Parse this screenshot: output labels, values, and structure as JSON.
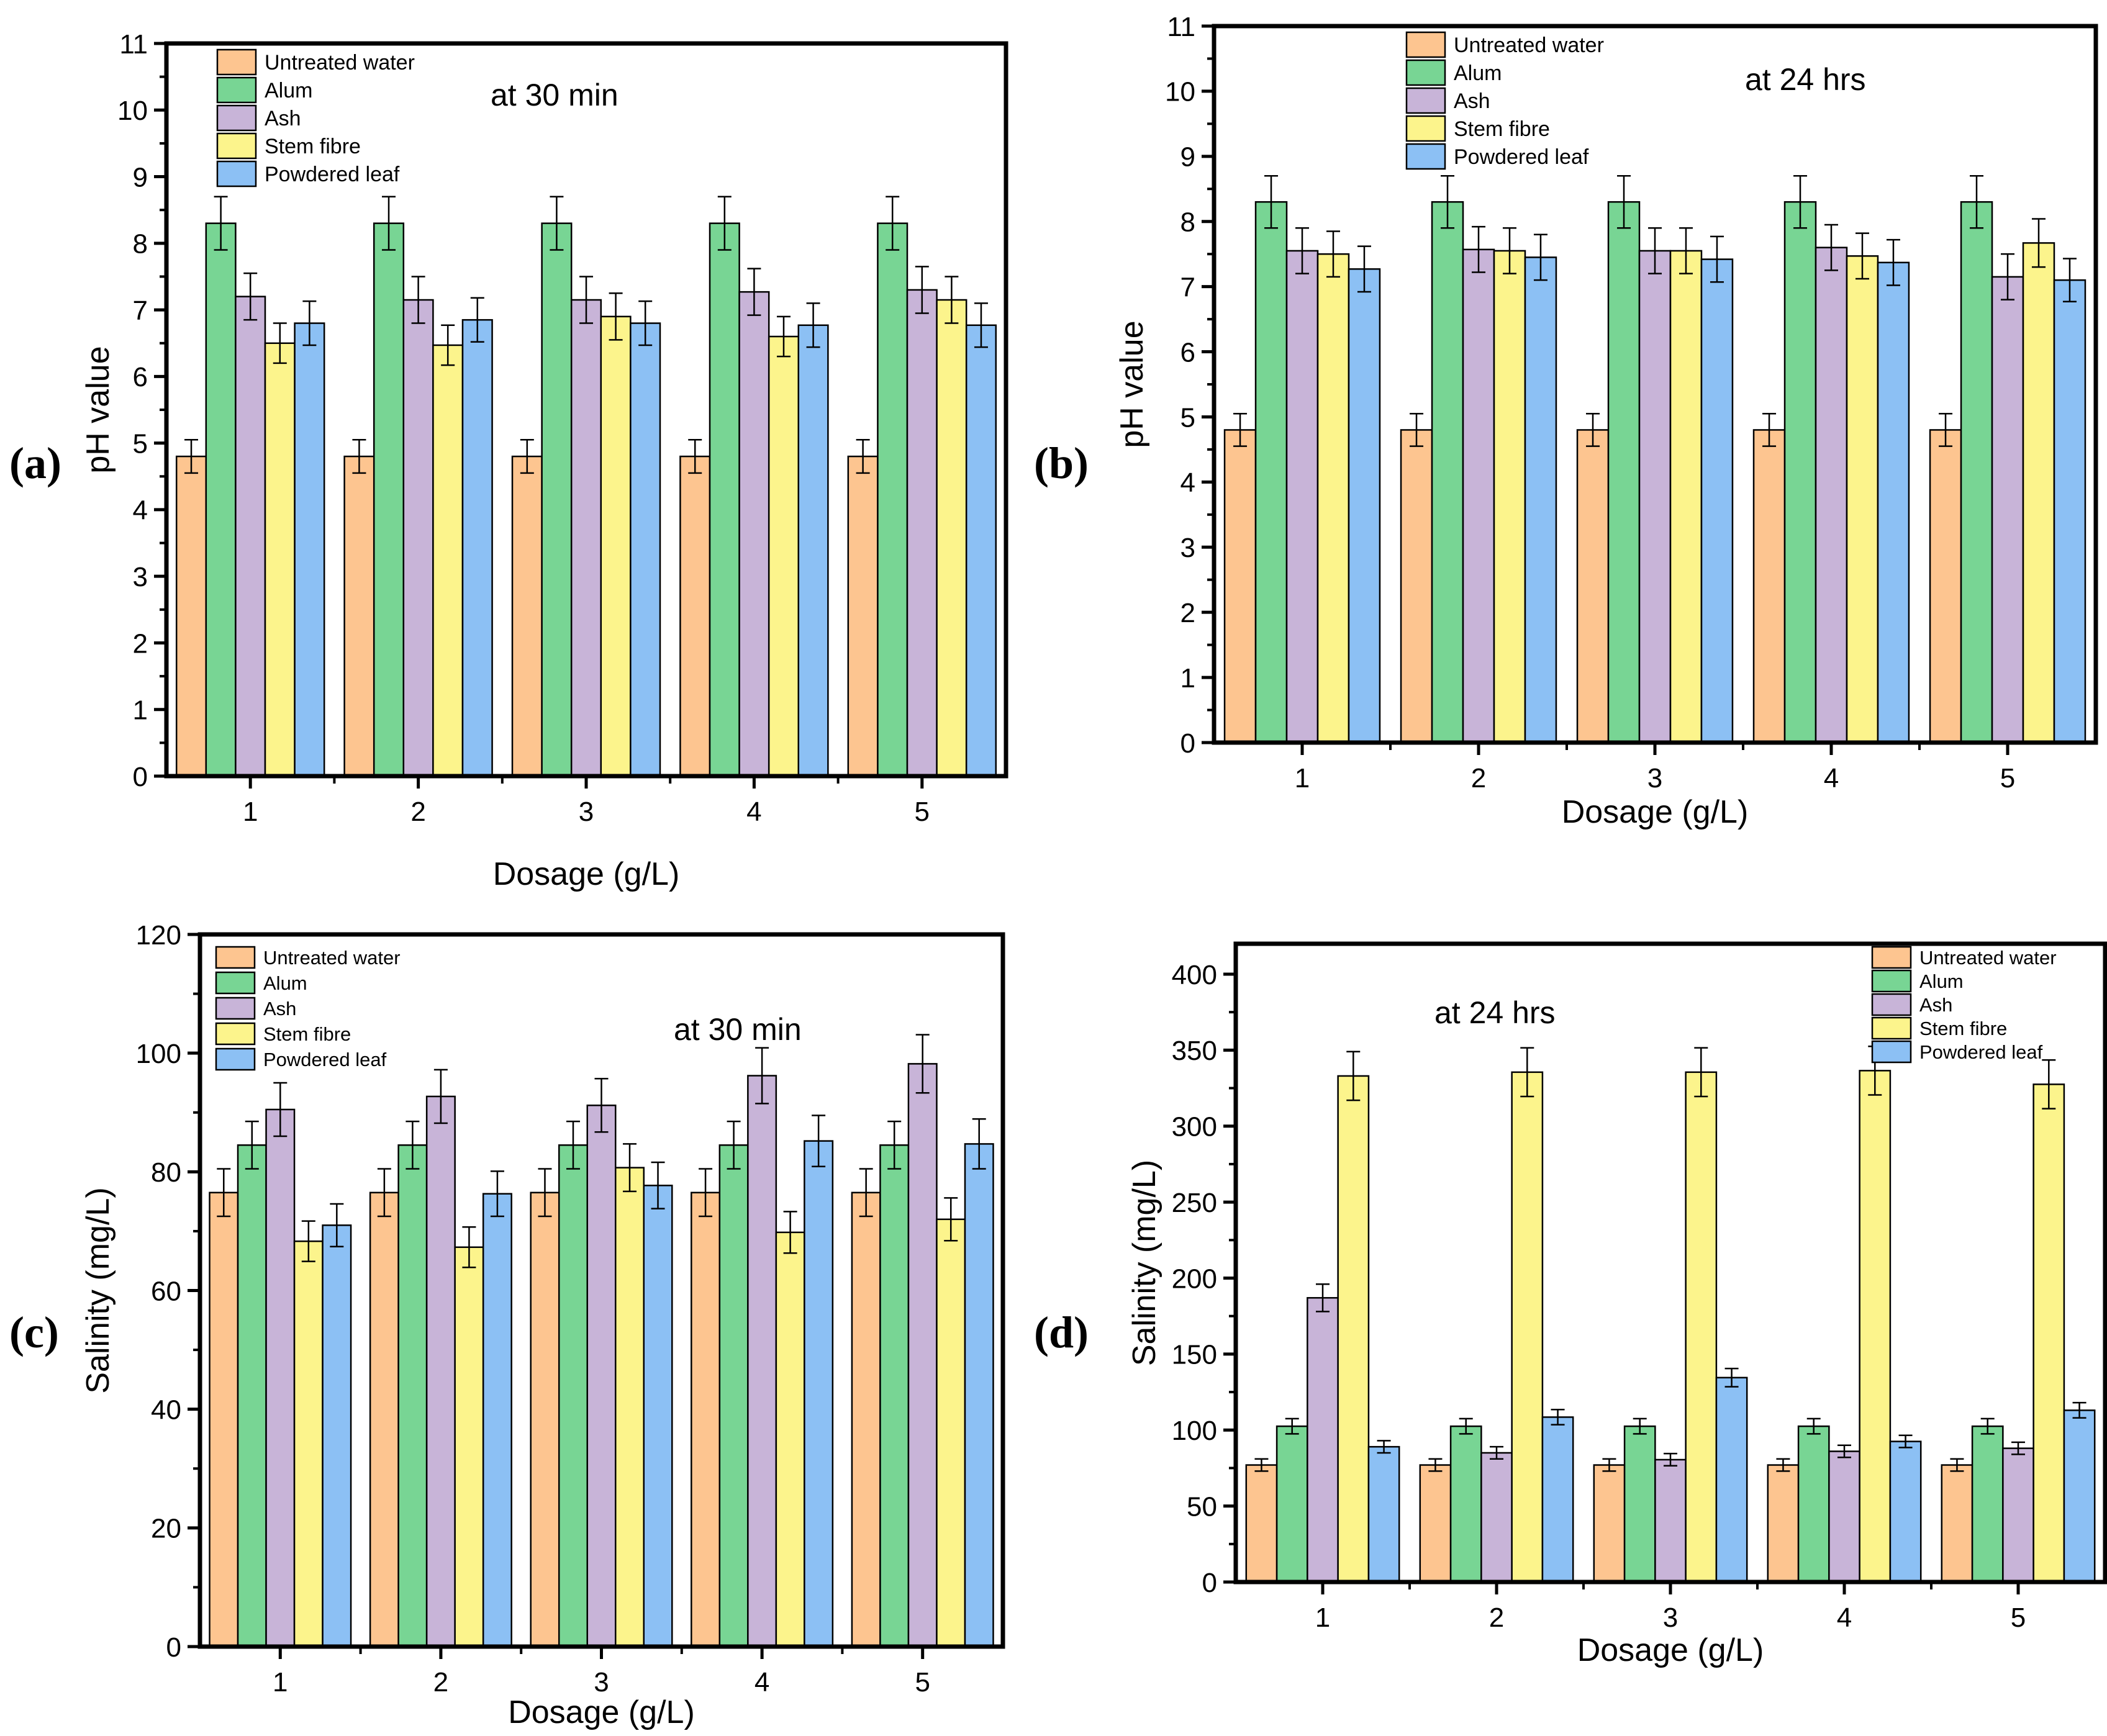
{
  "colors": {
    "series": [
      "#FDC590",
      "#78D594",
      "#C8B4D8",
      "#FCF48C",
      "#8CC0F4"
    ],
    "axis": "#000000",
    "error_bar": "#000000"
  },
  "chart_data": [
    {
      "type": "bar",
      "panel_label": "(a)",
      "annotation": "at 30 min",
      "xlabel": "Dosage (g/L)",
      "ylabel": "pH value",
      "ylim": [
        0,
        11
      ],
      "yticks": [
        "0",
        "1",
        "2",
        "3",
        "4",
        "5",
        "6",
        "7",
        "8",
        "9",
        "10",
        "11"
      ],
      "categories": [
        "1",
        "2",
        "3",
        "4",
        "5"
      ],
      "legend_position": "top-left",
      "series": [
        {
          "name": "Untreated water",
          "values": [
            4.8,
            4.8,
            4.8,
            4.8,
            4.8
          ],
          "errors": [
            0.25,
            0.25,
            0.25,
            0.25,
            0.25
          ]
        },
        {
          "name": "Alum",
          "values": [
            8.3,
            8.3,
            8.3,
            8.3,
            8.3
          ],
          "errors": [
            0.4,
            0.4,
            0.4,
            0.4,
            0.4
          ]
        },
        {
          "name": "Ash",
          "values": [
            7.2,
            7.15,
            7.15,
            7.27,
            7.3
          ],
          "errors": [
            0.35,
            0.35,
            0.35,
            0.35,
            0.35
          ]
        },
        {
          "name": "Stem fibre",
          "values": [
            6.5,
            6.47,
            6.9,
            6.6,
            7.15
          ],
          "errors": [
            0.3,
            0.3,
            0.35,
            0.3,
            0.35
          ]
        },
        {
          "name": "Powdered leaf",
          "values": [
            6.8,
            6.85,
            6.8,
            6.77,
            6.77
          ],
          "errors": [
            0.33,
            0.33,
            0.33,
            0.33,
            0.33
          ]
        }
      ]
    },
    {
      "type": "bar",
      "panel_label": "(b)",
      "annotation": "at 24 hrs",
      "xlabel": "Dosage (g/L)",
      "ylabel": "pH value",
      "ylim": [
        0,
        11
      ],
      "yticks": [
        "0",
        "1",
        "2",
        "3",
        "4",
        "5",
        "6",
        "7",
        "8",
        "9",
        "10",
        "11"
      ],
      "categories": [
        "1",
        "2",
        "3",
        "4",
        "5"
      ],
      "legend_position": "top-left",
      "series": [
        {
          "name": "Untreated water",
          "values": [
            4.8,
            4.8,
            4.8,
            4.8,
            4.8
          ],
          "errors": [
            0.25,
            0.25,
            0.25,
            0.25,
            0.25
          ]
        },
        {
          "name": "Alum",
          "values": [
            8.3,
            8.3,
            8.3,
            8.3,
            8.3
          ],
          "errors": [
            0.4,
            0.4,
            0.4,
            0.4,
            0.4
          ]
        },
        {
          "name": "Ash",
          "values": [
            7.55,
            7.57,
            7.55,
            7.6,
            7.15
          ],
          "errors": [
            0.35,
            0.35,
            0.35,
            0.35,
            0.35
          ]
        },
        {
          "name": "Stem fibre",
          "values": [
            7.5,
            7.55,
            7.55,
            7.47,
            7.67
          ],
          "errors": [
            0.35,
            0.35,
            0.35,
            0.35,
            0.37
          ]
        },
        {
          "name": "Powdered leaf",
          "values": [
            7.27,
            7.45,
            7.42,
            7.37,
            7.1
          ],
          "errors": [
            0.35,
            0.35,
            0.35,
            0.35,
            0.33
          ]
        }
      ]
    },
    {
      "type": "bar",
      "panel_label": "(c)",
      "annotation": "at 30 min",
      "xlabel": "Dosage (g/L)",
      "ylabel": "Salinity (mg/L)",
      "ylim": [
        0,
        120
      ],
      "yticks": [
        "0",
        "20",
        "40",
        "60",
        "80",
        "100",
        "120"
      ],
      "categories": [
        "1",
        "2",
        "3",
        "4",
        "5"
      ],
      "legend_position": "top-left",
      "series": [
        {
          "name": "Untreated water",
          "values": [
            76.5,
            76.5,
            76.5,
            76.5,
            76.5
          ],
          "errors": [
            4,
            4,
            4,
            4,
            4
          ]
        },
        {
          "name": "Alum",
          "values": [
            84.5,
            84.5,
            84.5,
            84.5,
            84.5
          ],
          "errors": [
            4,
            4,
            4,
            4,
            4
          ]
        },
        {
          "name": "Ash",
          "values": [
            90.5,
            92.7,
            91.2,
            96.2,
            98.2
          ],
          "errors": [
            4.5,
            4.5,
            4.5,
            4.7,
            4.9
          ]
        },
        {
          "name": "Stem fibre",
          "values": [
            68.3,
            67.3,
            80.7,
            69.8,
            72.0
          ],
          "errors": [
            3.4,
            3.4,
            4.0,
            3.5,
            3.6
          ]
        },
        {
          "name": "Powdered leaf",
          "values": [
            71.0,
            76.3,
            77.7,
            85.2,
            84.7
          ],
          "errors": [
            3.6,
            3.8,
            3.9,
            4.3,
            4.2
          ]
        }
      ]
    },
    {
      "type": "bar",
      "panel_label": "(d)",
      "annotation": "at 24 hrs",
      "xlabel": "Dosage (g/L)",
      "ylabel": "Salinity (mg/L)",
      "ylim": [
        0,
        420
      ],
      "yticks": [
        "0",
        "50",
        "100",
        "150",
        "200",
        "250",
        "300",
        "350",
        "400"
      ],
      "categories": [
        "1",
        "2",
        "3",
        "4",
        "5"
      ],
      "legend_position": "top-right",
      "series": [
        {
          "name": "Untreated water",
          "values": [
            77,
            77,
            77,
            77,
            77
          ],
          "errors": [
            4,
            4,
            4,
            4,
            4
          ]
        },
        {
          "name": "Alum",
          "values": [
            102.5,
            102.5,
            102.5,
            102.5,
            102.5
          ],
          "errors": [
            5,
            5,
            5,
            5,
            5
          ]
        },
        {
          "name": "Ash",
          "values": [
            187,
            85,
            80.5,
            86,
            88
          ],
          "errors": [
            9,
            4,
            4,
            4,
            4
          ]
        },
        {
          "name": "Stem fibre",
          "values": [
            333,
            335.5,
            335.5,
            336.5,
            327.5
          ],
          "errors": [
            16,
            16,
            16,
            16,
            16
          ]
        },
        {
          "name": "Powdered leaf",
          "values": [
            89,
            108.5,
            134.5,
            92.5,
            113
          ],
          "errors": [
            4,
            5,
            6,
            4,
            5
          ]
        }
      ]
    }
  ]
}
